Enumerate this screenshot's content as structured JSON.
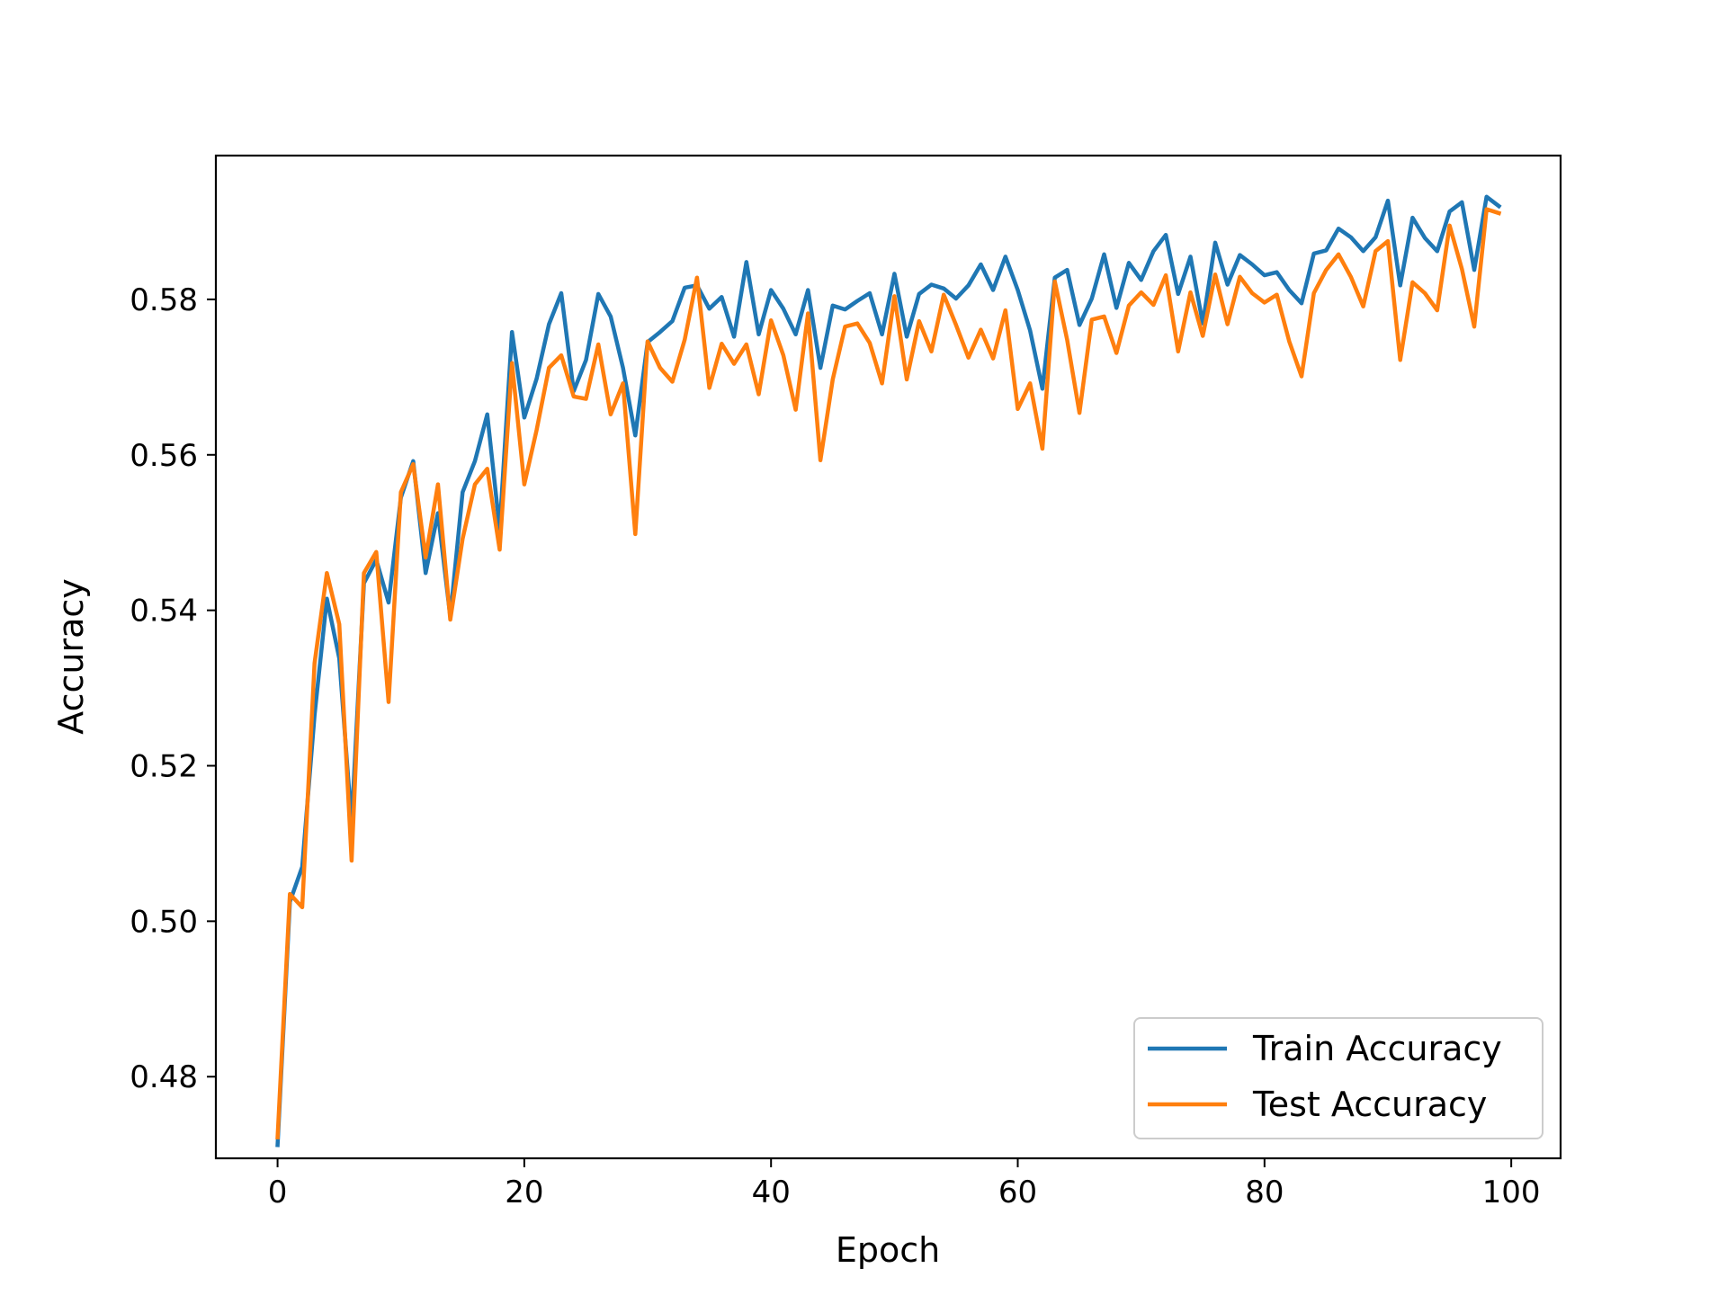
{
  "chart_data": {
    "type": "line",
    "title": "",
    "xlabel": "Epoch",
    "ylabel": "Accuracy",
    "xlim": [
      -5,
      104
    ],
    "ylim": [
      0.4695,
      0.5985
    ],
    "xticks": [
      0,
      20,
      40,
      60,
      80,
      100
    ],
    "xtick_labels": [
      "0",
      "20",
      "40",
      "60",
      "80",
      "100"
    ],
    "yticks": [
      0.48,
      0.5,
      0.52,
      0.54,
      0.56,
      0.58
    ],
    "ytick_labels": [
      "0.48",
      "0.50",
      "0.52",
      "0.54",
      "0.56",
      "0.58"
    ],
    "grid": false,
    "legend_position": "lower-right",
    "series": [
      {
        "name": "Train Accuracy",
        "color": "#1f77b4",
        "x": [
          0,
          1,
          2,
          3,
          4,
          5,
          6,
          7,
          8,
          9,
          10,
          11,
          12,
          13,
          14,
          15,
          16,
          17,
          18,
          19,
          20,
          21,
          22,
          23,
          24,
          25,
          26,
          27,
          28,
          29,
          30,
          31,
          32,
          33,
          34,
          35,
          36,
          37,
          38,
          39,
          40,
          41,
          42,
          43,
          44,
          45,
          46,
          47,
          48,
          49,
          50,
          51,
          52,
          53,
          54,
          55,
          56,
          57,
          58,
          59,
          60,
          61,
          62,
          63,
          64,
          65,
          66,
          67,
          68,
          69,
          70,
          71,
          72,
          73,
          74,
          75,
          76,
          77,
          78,
          79,
          80,
          81,
          82,
          83,
          84,
          85,
          86,
          87,
          88,
          89,
          90,
          91,
          92,
          93,
          94,
          95,
          96,
          97,
          98,
          99
        ],
        "values": [
          0.4712,
          0.5025,
          0.507,
          0.5265,
          0.5415,
          0.5338,
          0.5125,
          0.5435,
          0.5465,
          0.541,
          0.5545,
          0.5592,
          0.5448,
          0.5525,
          0.5392,
          0.5552,
          0.5592,
          0.5652,
          0.5505,
          0.5758,
          0.5648,
          0.5698,
          0.5768,
          0.5808,
          0.5682,
          0.5722,
          0.5807,
          0.5778,
          0.5712,
          0.5625,
          0.5745,
          0.5758,
          0.5772,
          0.5815,
          0.5818,
          0.5788,
          0.5803,
          0.5752,
          0.5848,
          0.5755,
          0.5812,
          0.5788,
          0.5755,
          0.5812,
          0.5712,
          0.5792,
          0.5787,
          0.5798,
          0.5808,
          0.5755,
          0.5833,
          0.5752,
          0.5807,
          0.5819,
          0.5814,
          0.5801,
          0.5818,
          0.5845,
          0.5812,
          0.5855,
          0.5812,
          0.576,
          0.5685,
          0.5828,
          0.5838,
          0.5767,
          0.5801,
          0.5858,
          0.5789,
          0.5847,
          0.5825,
          0.5862,
          0.5883,
          0.5807,
          0.5855,
          0.5769,
          0.5873,
          0.5819,
          0.5857,
          0.5845,
          0.5831,
          0.5835,
          0.5812,
          0.5795,
          0.5859,
          0.5863,
          0.5891,
          0.588,
          0.5862,
          0.588,
          0.5927,
          0.5818,
          0.5905,
          0.5879,
          0.5862,
          0.5913,
          0.5925,
          0.5838,
          0.5932,
          0.592
        ]
      },
      {
        "name": "Test Accuracy",
        "color": "#ff7f0e",
        "x": [
          0,
          1,
          2,
          3,
          4,
          5,
          6,
          7,
          8,
          9,
          10,
          11,
          12,
          13,
          14,
          15,
          16,
          17,
          18,
          19,
          20,
          21,
          22,
          23,
          24,
          25,
          26,
          27,
          28,
          29,
          30,
          31,
          32,
          33,
          34,
          35,
          36,
          37,
          38,
          39,
          40,
          41,
          42,
          43,
          44,
          45,
          46,
          47,
          48,
          49,
          50,
          51,
          52,
          53,
          54,
          55,
          56,
          57,
          58,
          59,
          60,
          61,
          62,
          63,
          64,
          65,
          66,
          67,
          68,
          69,
          70,
          71,
          72,
          73,
          74,
          75,
          76,
          77,
          78,
          79,
          80,
          81,
          82,
          83,
          84,
          85,
          86,
          87,
          88,
          89,
          90,
          91,
          92,
          93,
          94,
          95,
          96,
          97,
          98,
          99
        ],
        "values": [
          0.4722,
          0.5035,
          0.5018,
          0.5332,
          0.5448,
          0.5382,
          0.5078,
          0.5448,
          0.5475,
          0.5282,
          0.5552,
          0.5588,
          0.5468,
          0.5562,
          0.5388,
          0.5492,
          0.5562,
          0.5582,
          0.5478,
          0.5718,
          0.5562,
          0.5632,
          0.5712,
          0.5728,
          0.5675,
          0.5672,
          0.5742,
          0.5652,
          0.5692,
          0.5498,
          0.5746,
          0.5712,
          0.5694,
          0.5748,
          0.5828,
          0.5686,
          0.5743,
          0.5717,
          0.5742,
          0.5678,
          0.5773,
          0.5728,
          0.5658,
          0.5782,
          0.5593,
          0.5697,
          0.5765,
          0.5769,
          0.5744,
          0.5692,
          0.5804,
          0.5697,
          0.5772,
          0.5733,
          0.5806,
          0.5767,
          0.5725,
          0.5761,
          0.5724,
          0.5786,
          0.5659,
          0.5692,
          0.5608,
          0.5823,
          0.5748,
          0.5654,
          0.5774,
          0.5778,
          0.5731,
          0.5792,
          0.5809,
          0.5793,
          0.5831,
          0.5733,
          0.5809,
          0.5753,
          0.5832,
          0.5768,
          0.5829,
          0.5808,
          0.5796,
          0.5806,
          0.5746,
          0.5701,
          0.5808,
          0.5838,
          0.5858,
          0.5829,
          0.5791,
          0.5862,
          0.5875,
          0.5722,
          0.5822,
          0.5808,
          0.5786,
          0.5895,
          0.5839,
          0.5765,
          0.5916,
          0.5911
        ]
      }
    ]
  }
}
